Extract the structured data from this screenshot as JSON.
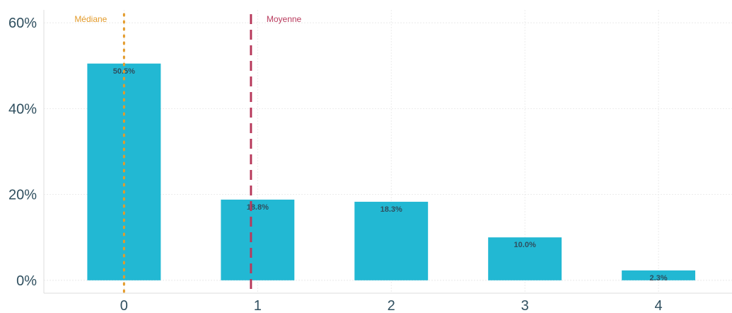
{
  "chart_data": {
    "type": "bar",
    "categories": [
      "0",
      "1",
      "2",
      "3",
      "4"
    ],
    "values": [
      50.5,
      18.8,
      18.3,
      10.0,
      2.3
    ],
    "data_labels": [
      "50.5%",
      "18.8%",
      "18.3%",
      "10.0%",
      "2.3%"
    ],
    "y_ticks": [
      0,
      20,
      40,
      60
    ],
    "y_tick_labels": [
      "0%",
      "20%",
      "40%",
      "60%"
    ],
    "x_tick_labels": [
      "0",
      "1",
      "2",
      "3",
      "4"
    ],
    "xlim": [
      -0.6,
      4.55
    ],
    "ylim": [
      -3,
      63
    ],
    "title": "",
    "xlabel": "",
    "ylabel": "",
    "grid": true,
    "bar_color": "#22b8d3",
    "reference_lines": [
      {
        "label": "Médiane",
        "x": 0.0,
        "style": "dotted",
        "color": "#e39b2b"
      },
      {
        "label": "Moyenne",
        "x": 0.95,
        "style": "dashed",
        "color": "#b83a5c"
      }
    ]
  }
}
